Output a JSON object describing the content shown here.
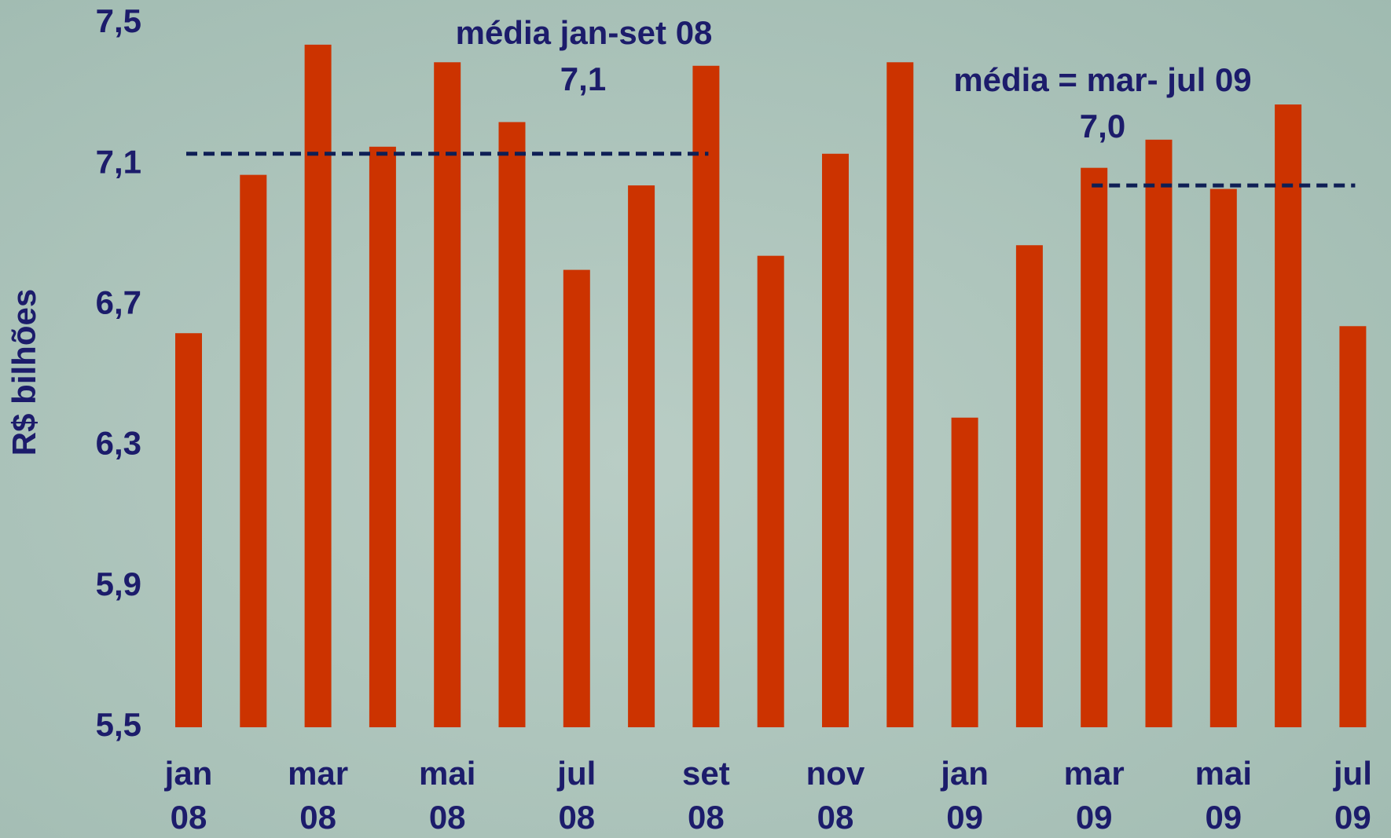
{
  "chart_data": {
    "type": "bar",
    "y_label": "R$ bilhões",
    "categories": [
      "jan 08",
      null,
      "mar 08",
      null,
      "mai 08",
      null,
      "jul 08",
      null,
      "set 08",
      null,
      "nov 08",
      null,
      "jan 09",
      null,
      "mar 09",
      null,
      "mai 09",
      null,
      "jul 09"
    ],
    "values": [
      6.62,
      7.07,
      7.44,
      7.15,
      7.39,
      7.22,
      6.8,
      7.04,
      7.38,
      6.84,
      7.13,
      7.39,
      6.38,
      6.87,
      7.09,
      7.17,
      7.03,
      7.27,
      6.64
    ],
    "color": "#cc3300",
    "ylim": [
      5.5,
      7.5
    ],
    "yticks": [
      {
        "value": 5.5,
        "label": "5,5"
      },
      {
        "value": 5.9,
        "label": "5,9"
      },
      {
        "value": 6.3,
        "label": "6,3"
      },
      {
        "value": 6.7,
        "label": "6,7"
      },
      {
        "value": 7.1,
        "label": "7,1"
      },
      {
        "value": 7.5,
        "label": "7,5"
      }
    ],
    "grid": false,
    "reference_lines": [
      {
        "label": "média jan-set 08",
        "value": 7.13,
        "value_label": "7,1",
        "span": [
          "jan 08",
          "set 08"
        ],
        "color": "#0f1f55"
      },
      {
        "label": "média = mar- jul 09",
        "value": 7.04,
        "value_label": "7,0",
        "span": [
          "mar 09",
          "jul 09"
        ],
        "color": "#0f1f55"
      }
    ]
  }
}
